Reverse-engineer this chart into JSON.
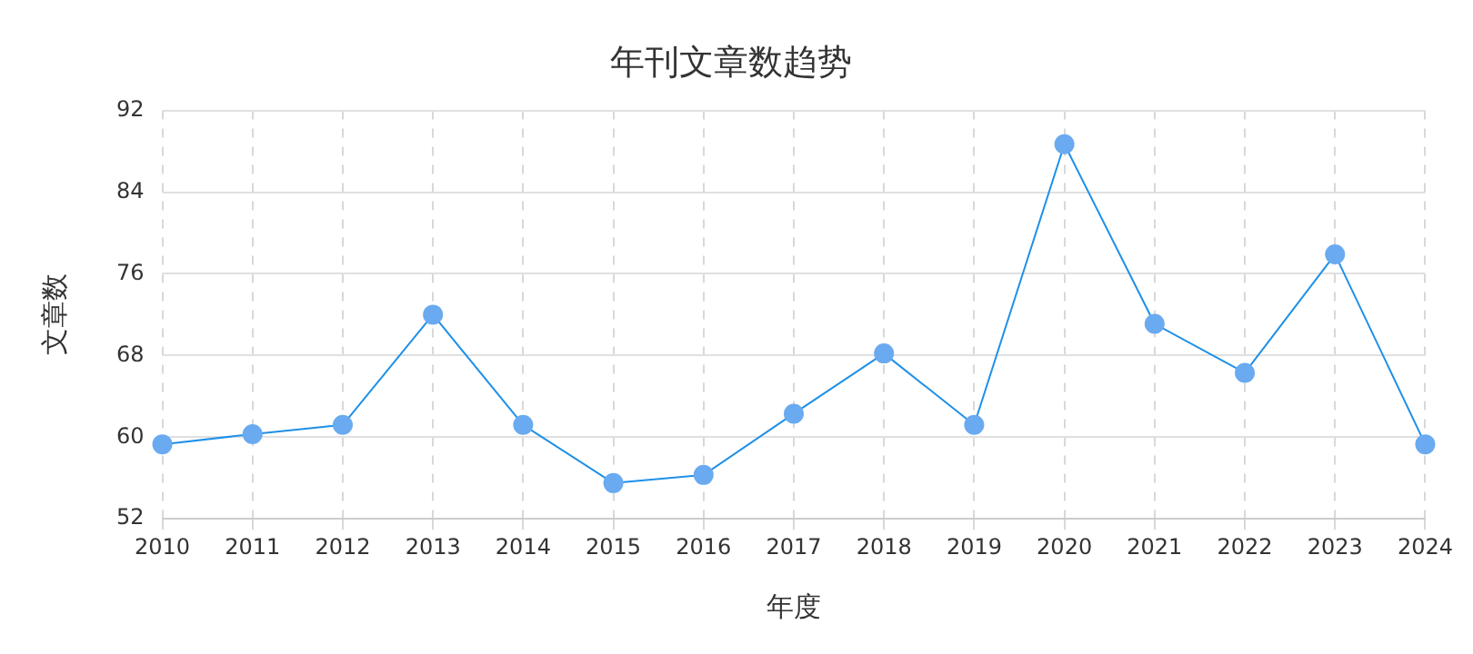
{
  "chart_data": {
    "type": "line",
    "title": "年刊文章数趋势",
    "xlabel": "年度",
    "ylabel": "文章数",
    "categories": [
      "2010",
      "2011",
      "2012",
      "2013",
      "2014",
      "2015",
      "2016",
      "2017",
      "2018",
      "2019",
      "2020",
      "2021",
      "2022",
      "2023",
      "2024"
    ],
    "series": [
      {
        "color": "#1e90e8",
        "values": [
          59.3,
          60.3,
          61.2,
          72,
          61.2,
          55.5,
          56.3,
          62.3,
          68.2,
          61.2,
          88.7,
          71.1,
          66.3,
          77.9,
          59.3
        ]
      }
    ],
    "ylim": [
      52,
      92
    ],
    "yticks": [
      52,
      60,
      68,
      76,
      84,
      92
    ],
    "grid": true,
    "legend": false,
    "marker": "circle",
    "line_style": "solid"
  }
}
